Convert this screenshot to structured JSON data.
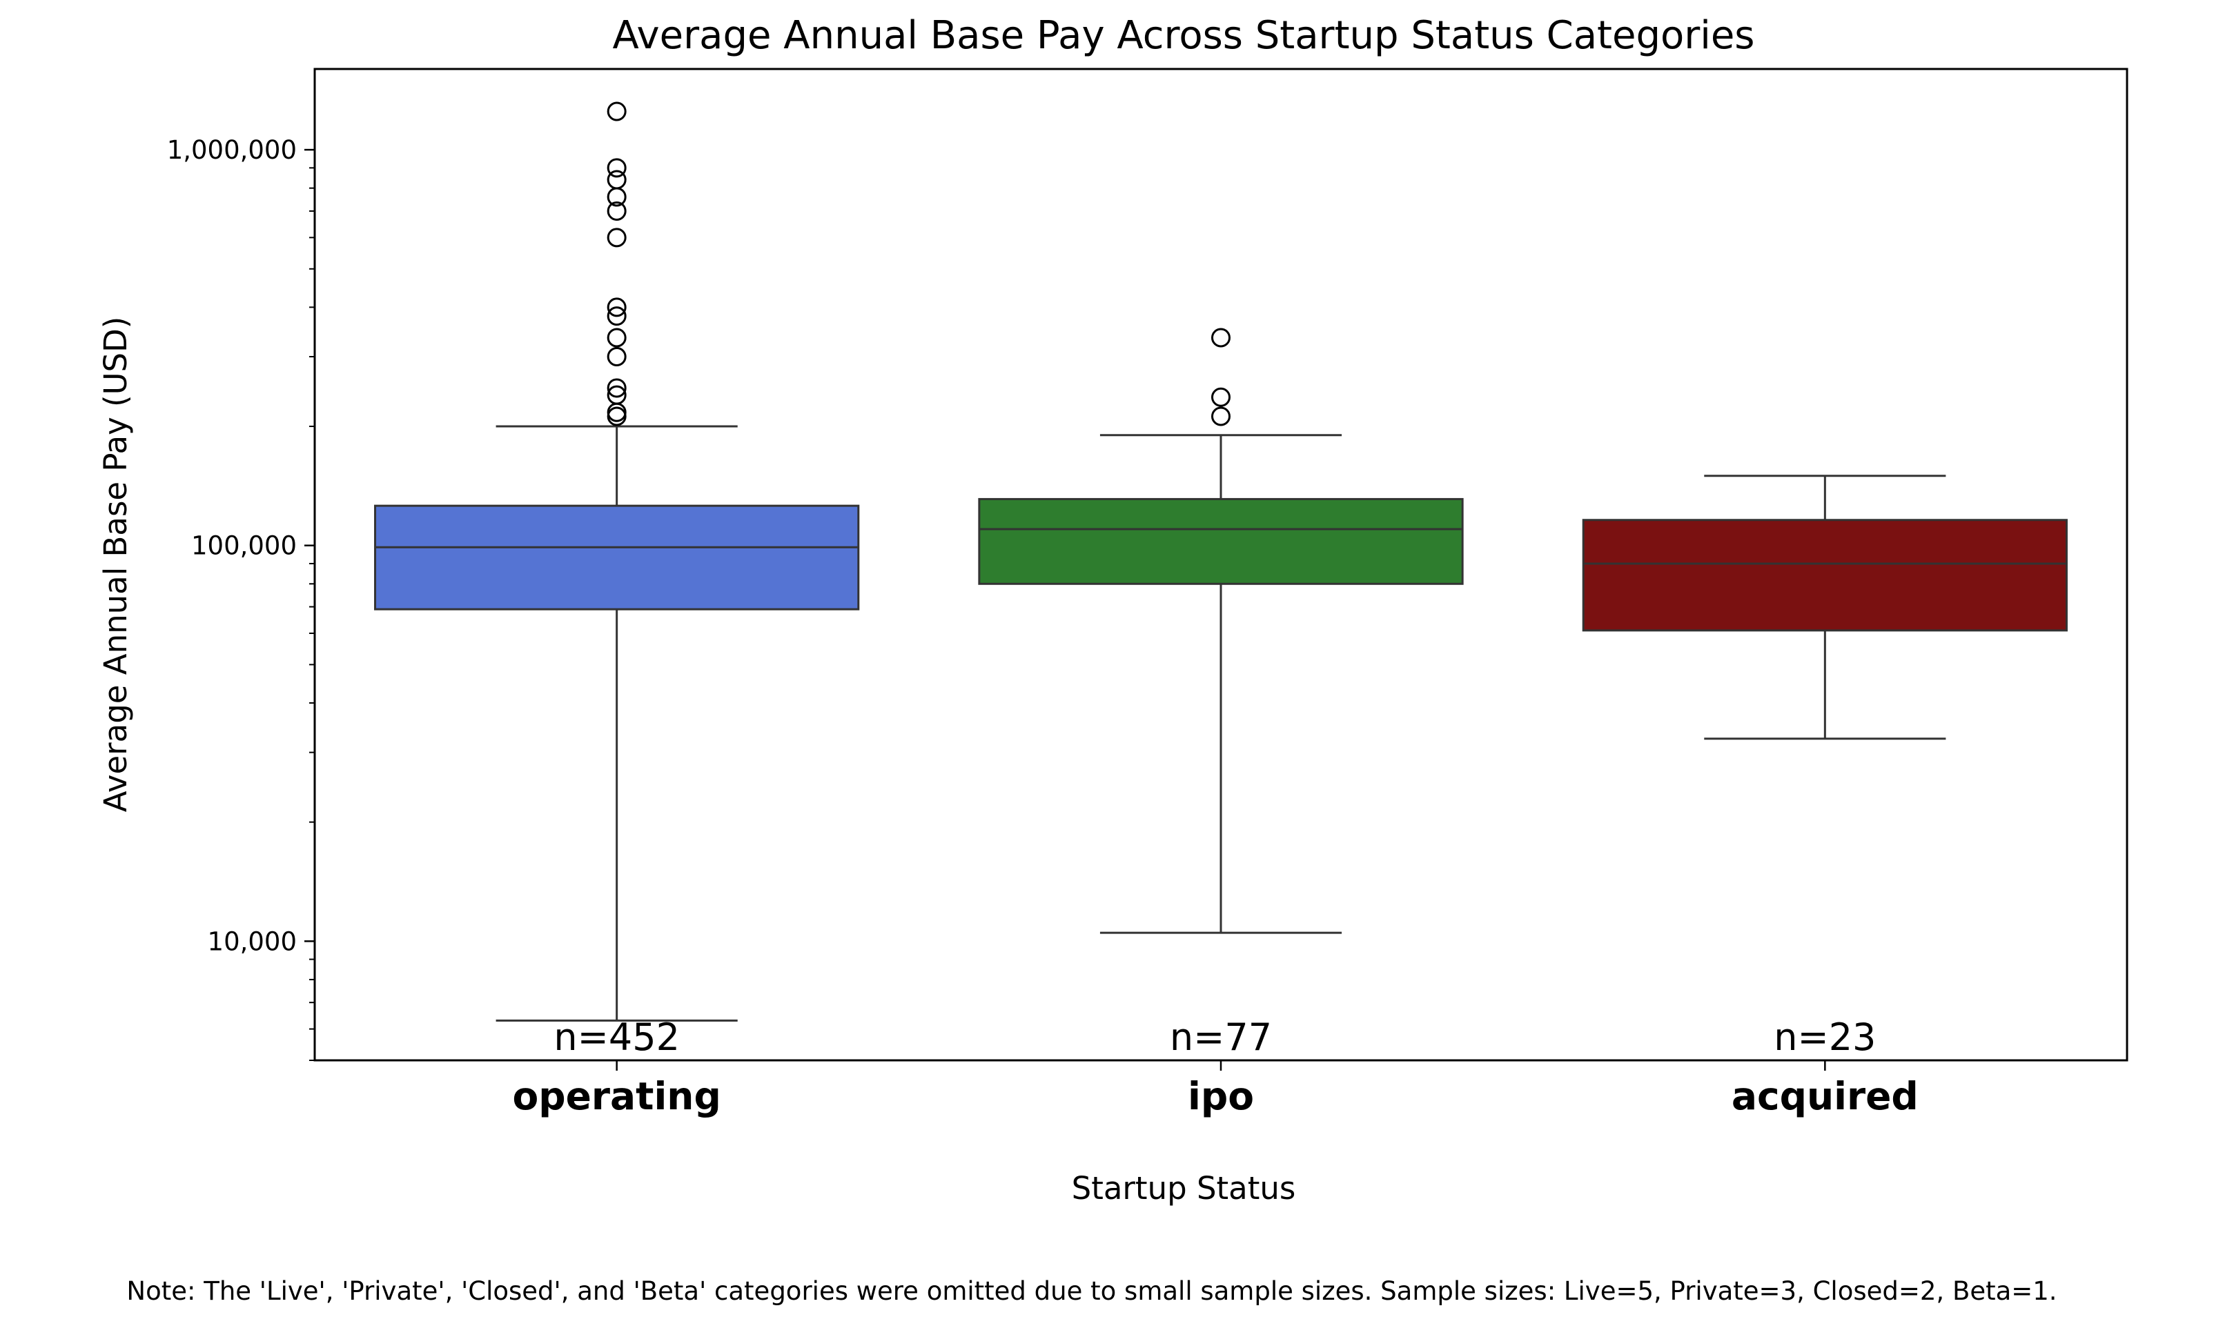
{
  "chart_data": {
    "type": "box",
    "title": "Average Annual Base Pay Across Startup Status Categories",
    "xlabel": "Startup Status",
    "ylabel": "Average Annual Base Pay (USD)",
    "yscale": "log",
    "ylim": [
      5000,
      1600000
    ],
    "yticks": [
      {
        "value": 10000,
        "label": "10,000"
      },
      {
        "value": 100000,
        "label": "100,000"
      },
      {
        "value": 1000000,
        "label": "1,000,000"
      }
    ],
    "grid": false,
    "legend": "none",
    "categories": [
      "operating",
      "ipo",
      "acquired"
    ],
    "boxes": [
      {
        "category": "operating",
        "color": "#5574d3",
        "whisker_low": 6300,
        "q1": 69000,
        "median": 99000,
        "q3": 126000,
        "whisker_high": 200000,
        "outliers": [
          212000,
          217000,
          240000,
          250000,
          300000,
          335000,
          380000,
          400000,
          600000,
          700000,
          760000,
          840000,
          900000,
          1250000
        ],
        "n_label": "n=452"
      },
      {
        "category": "ipo",
        "color": "#2e7d2e",
        "whisker_low": 10500,
        "q1": 80000,
        "median": 110000,
        "q3": 131000,
        "whisker_high": 190000,
        "outliers": [
          212000,
          237000,
          335000
        ],
        "n_label": "n=77"
      },
      {
        "category": "acquired",
        "color": "#7a1111",
        "whisker_low": 32500,
        "q1": 61000,
        "median": 90000,
        "q3": 116000,
        "whisker_high": 150000,
        "outliers": [],
        "n_label": "n=23"
      }
    ],
    "note": "Note: The 'Live', 'Private', 'Closed', and 'Beta' categories were omitted due to small sample sizes. Sample sizes: Live=5, Private=3, Closed=2, Beta=1."
  }
}
